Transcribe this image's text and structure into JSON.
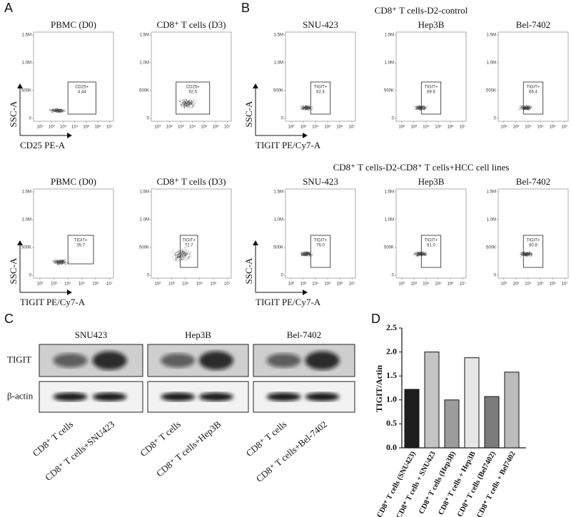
{
  "panel_labels": {
    "a": "A",
    "b": "B",
    "c": "C",
    "d": "D"
  },
  "flow": {
    "y_label": "SSC-A",
    "y_ticks": [
      "1.5M",
      "1.0M",
      "500K",
      "0"
    ]
  },
  "panel_a": {
    "rows": [
      {
        "x_label": "CD25 PE-A",
        "x_ticks": [
          "10¹",
          "10²",
          "10³",
          "10⁴",
          "10⁵",
          "10⁶",
          "10⁷"
        ],
        "plots": [
          {
            "title": "PBMC (D0)",
            "gate": "CD25+",
            "percent": "4.44"
          },
          {
            "title": "CD8⁺ T cells (D3)",
            "gate": "CD25+",
            "percent": "92.5"
          }
        ]
      },
      {
        "x_label": "TIGIT PE/Cy7-A",
        "x_ticks": [
          "10²",
          "10³",
          "10⁴",
          "10⁵",
          "10⁶",
          "10⁷"
        ],
        "plots": [
          {
            "title": "PBMC (D0)",
            "gate": "TIGIT+",
            "percent": "35.7"
          },
          {
            "title": "CD8⁺ T cells (D3)",
            "gate": "TIGIT+",
            "percent": "72.7"
          }
        ]
      }
    ]
  },
  "panel_b": {
    "rows": [
      {
        "title": "CD8⁺ T cells-D2-control",
        "x_label": "TIGIT PE/Cy7-A",
        "x_ticks": [
          "10²",
          "10³",
          "10⁴",
          "10⁵",
          "10⁶",
          "10⁷"
        ],
        "plots": [
          {
            "title": "SNU-423",
            "gate": "TIGIT+",
            "percent": "62.4"
          },
          {
            "title": "Hep3B",
            "gate": "TIGIT+",
            "percent": "69.6"
          },
          {
            "title": "Bel-7402",
            "gate": "TIGIT+",
            "percent": "66.4"
          }
        ]
      },
      {
        "title": "CD8⁺ T cells-D2-CD8⁺ T cells+HCC cell lines",
        "x_label": "TIGIT PE/Cy7-A",
        "x_ticks": [
          "10²",
          "10³",
          "10⁴",
          "10⁵",
          "10⁶",
          "10⁷"
        ],
        "plots": [
          {
            "title": "SNU-423",
            "gate": "TIGIT+",
            "percent": "76.0"
          },
          {
            "title": "Hep3B",
            "gate": "TIGIT+",
            "percent": "81.0"
          },
          {
            "title": "Bel-7402",
            "gate": "TIGIT+",
            "percent": "80.8"
          }
        ]
      }
    ]
  },
  "panel_c": {
    "row_labels": [
      "TIGIT",
      "β-actin"
    ],
    "groups": [
      {
        "name": "SNU423",
        "lanes": [
          "CD8⁺ T cells",
          "CD8⁺ T cells+SNU423"
        ]
      },
      {
        "name": "Hep3B",
        "lanes": [
          "CD8⁺ T cells",
          "CD8⁺ T cells+Hep3B"
        ]
      },
      {
        "name": "Bel-7402",
        "lanes": [
          "CD8⁺ T cells",
          "CD8⁺ T cells+Bel-7402"
        ]
      }
    ]
  },
  "chart_data": {
    "type": "bar",
    "y_label": "TIGIT/Actin",
    "categories": [
      "CD8⁺ T cells (SNU423)",
      "CD8⁺ T cells + SNU423",
      "CD8⁺ T cells (Hep3B)",
      "CD8⁺ T cells + Hep3B",
      "CD8⁺ T cells (Bel7402)",
      "CD8⁺ T cells + Bel7402"
    ],
    "values": [
      1.22,
      2.0,
      1.0,
      1.88,
      1.07,
      1.58
    ],
    "colors": [
      "#1e1e1e",
      "#c4c4c4",
      "#9c9c9c",
      "#e6e6e6",
      "#7c7c7c",
      "#bcbcbc"
    ],
    "ylim": [
      0,
      2.5
    ],
    "yticks": [
      {
        "value": 0,
        "label": "0.0"
      },
      {
        "value": 0.5,
        "label": "0.5"
      },
      {
        "value": 1,
        "label": "1.0"
      },
      {
        "value": 1.5,
        "label": "1.5"
      },
      {
        "value": 2,
        "label": "2.0"
      },
      {
        "value": 2.5,
        "label": "2.5"
      }
    ]
  }
}
